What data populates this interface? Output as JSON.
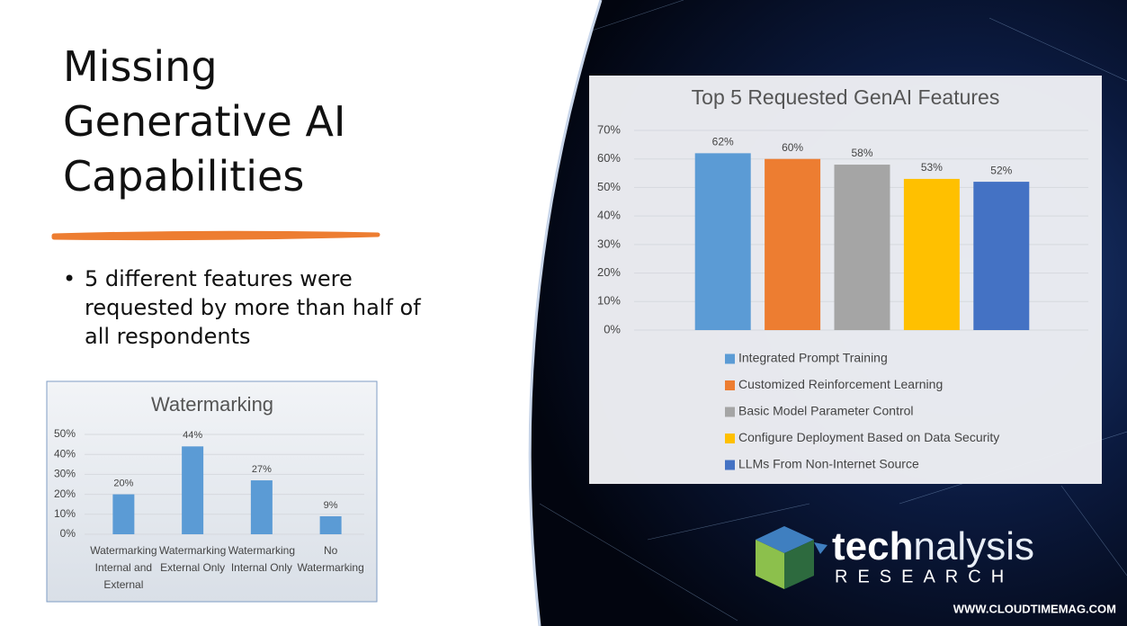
{
  "slide": {
    "title": "Missing Generative AI Capabilities",
    "bullet": "5 different features were requested by more than half of all respondents",
    "logo_a": "tech",
    "logo_b": "nalysis",
    "logo_sub": "RESEARCH",
    "website": "WWW.CLOUDTIMEMAG.COM"
  },
  "chart_data": [
    {
      "type": "bar",
      "title": "Top 5 Requested GenAI Features",
      "categories": [
        "Integrated Prompt Training",
        "Customized Reinforcement Learning",
        "Basic Model Parameter Control",
        "Configure Deployment Based on Data Security",
        "LLMs From Non-Internet Source"
      ],
      "values": [
        62,
        60,
        58,
        53,
        52
      ],
      "value_labels": [
        "62%",
        "60%",
        "58%",
        "53%",
        "52%"
      ],
      "colors": [
        "#5b9bd5",
        "#ed7d31",
        "#a5a5a5",
        "#ffc000",
        "#4472c4"
      ],
      "ylim": [
        0,
        70
      ],
      "yticks": [
        {
          "value": 0,
          "label": "0%"
        },
        {
          "value": 10,
          "label": "10%"
        },
        {
          "value": 20,
          "label": "20%"
        },
        {
          "value": 30,
          "label": "30%"
        },
        {
          "value": 40,
          "label": "40%"
        },
        {
          "value": 50,
          "label": "50%"
        },
        {
          "value": 60,
          "label": "60%"
        },
        {
          "value": 70,
          "label": "70%"
        }
      ],
      "grid": true,
      "legend": "bottom"
    },
    {
      "type": "bar",
      "title": "Watermarking",
      "categories": [
        "Watermarking Internal and External",
        "Watermarking External Only",
        "Watermarking Internal Only",
        "No Watermarking"
      ],
      "values": [
        20,
        44,
        27,
        9
      ],
      "value_labels": [
        "20%",
        "44%",
        "27%",
        "9%"
      ],
      "color": "#5b9bd5",
      "ylim": [
        0,
        50
      ],
      "yticks": [
        {
          "value": 0,
          "label": "0%"
        },
        {
          "value": 10,
          "label": "10%"
        },
        {
          "value": 20,
          "label": "20%"
        },
        {
          "value": 30,
          "label": "30%"
        },
        {
          "value": 40,
          "label": "40%"
        },
        {
          "value": 50,
          "label": "50%"
        }
      ],
      "grid": true
    }
  ]
}
